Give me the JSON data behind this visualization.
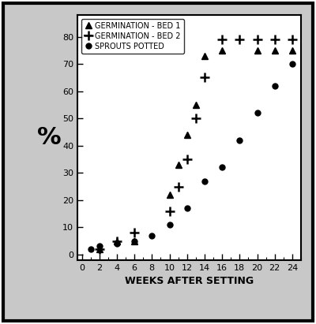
{
  "xlabel": "WEEKS AFTER SETTING",
  "ylabel": "%",
  "xlim": [
    -0.5,
    25
  ],
  "ylim": [
    -2,
    88
  ],
  "xticks": [
    0,
    2,
    4,
    6,
    8,
    10,
    12,
    14,
    16,
    18,
    20,
    22,
    24
  ],
  "yticks": [
    0,
    10,
    20,
    30,
    40,
    50,
    60,
    70,
    80
  ],
  "bed1_x": [
    2,
    4,
    6,
    10,
    11,
    12,
    13,
    14,
    16,
    20,
    22,
    24
  ],
  "bed1_y": [
    2,
    5,
    5,
    22,
    33,
    44,
    55,
    73,
    75,
    75,
    75,
    75
  ],
  "bed2_x": [
    2,
    4,
    6,
    10,
    11,
    12,
    13,
    14,
    16,
    18,
    20,
    22,
    24
  ],
  "bed2_y": [
    2,
    5,
    8,
    16,
    25,
    35,
    50,
    65,
    79,
    79,
    79,
    79,
    79
  ],
  "sprouts_x": [
    1,
    2,
    4,
    6,
    8,
    10,
    12,
    14,
    16,
    18,
    20,
    22,
    24
  ],
  "sprouts_y": [
    2,
    3,
    4,
    5,
    7,
    11,
    17,
    27,
    32,
    42,
    52,
    62,
    70
  ],
  "legend_labels": [
    "GERMINATION - BED 1",
    "GERMINATION - BED 2",
    "SPROUTS POTTED"
  ],
  "outer_bg_color": "#c8c8c8",
  "plot_bg_color": "#ffffff",
  "marker_color": "black",
  "font_size_axis_label": 9,
  "font_size_tick": 8,
  "font_size_legend": 7,
  "font_size_ylabel": 22
}
